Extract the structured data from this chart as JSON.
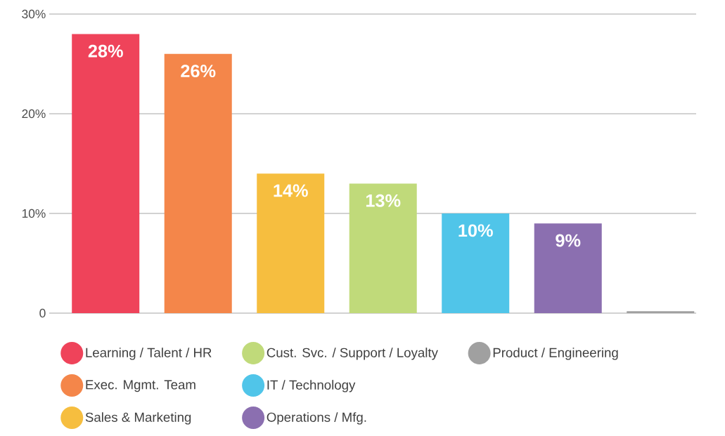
{
  "chart_data": {
    "type": "bar",
    "categories": [
      null
    ],
    "series": [
      {
        "name": "Learning / Talent / HR",
        "color": "#ef435a",
        "values": [
          28
        ],
        "value_labels": [
          "28%"
        ]
      },
      {
        "name": "Exec. Mgmt. Team",
        "color": "#f4864a",
        "values": [
          26
        ],
        "value_labels": [
          "26%"
        ]
      },
      {
        "name": "Sales & Marketing",
        "color": "#f6be3f",
        "values": [
          14
        ],
        "value_labels": [
          "14%"
        ]
      },
      {
        "name": "Cust. Svc. / Support / Loyalty",
        "color": "#c0da7a",
        "values": [
          13
        ],
        "value_labels": [
          "13%"
        ]
      },
      {
        "name": "IT / Technology",
        "color": "#50c5e9",
        "values": [
          10
        ],
        "value_labels": [
          "10%"
        ]
      },
      {
        "name": "Operations / Mfg.",
        "color": "#8b6fb0",
        "values": [
          9
        ],
        "value_labels": [
          "9%"
        ]
      },
      {
        "name": "Product / Engineering",
        "color": "#a0a0a0",
        "values": [
          0.2
        ],
        "value_labels": [
          null
        ]
      }
    ],
    "ylim": [
      0,
      30
    ],
    "yticks": [
      0,
      {
        "value": 10,
        "label": "10%"
      },
      {
        "value": 20,
        "label": "20%"
      },
      {
        "value": 30,
        "label": "30%"
      }
    ],
    "grid": "y",
    "legend": "bottom",
    "tick_labels": "y"
  }
}
